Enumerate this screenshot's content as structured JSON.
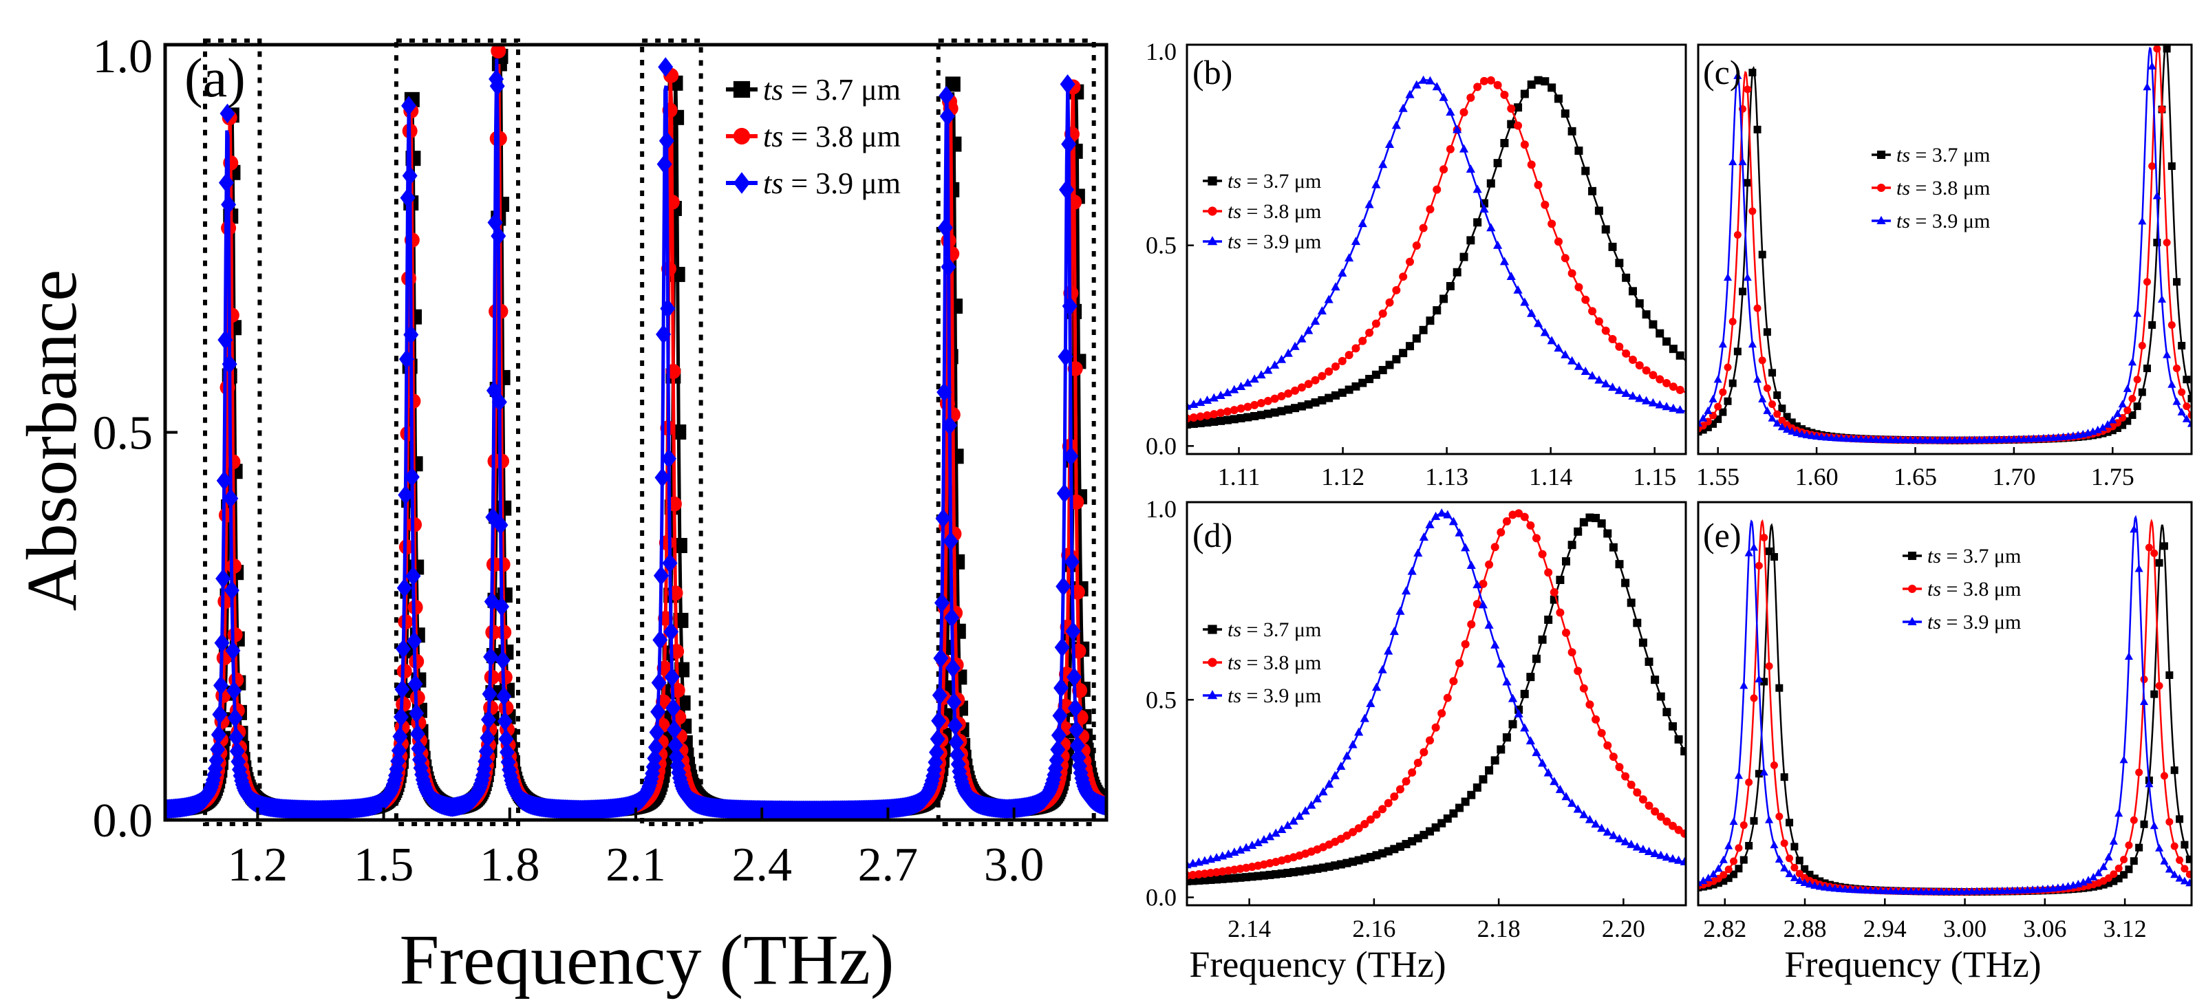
{
  "colors": {
    "s0": "#000000",
    "s1": "#ff0000",
    "s2": "#0000ff"
  },
  "chart_data": [
    {
      "panel": "(a)",
      "type": "line",
      "xlabel": "Frequency (THz)",
      "ylabel": "Absorbance",
      "xlim": [
        0.98,
        3.22
      ],
      "ylim": [
        0.0,
        1.0
      ],
      "xticks": [
        "1.2",
        "1.5",
        "1.8",
        "2.1",
        "2.4",
        "2.7",
        "3.0"
      ],
      "yticks": [
        "0.0",
        "0.5",
        "1.0"
      ],
      "legend_position": "top-right",
      "highlight_boxes_x": [
        [
          1.075,
          1.205
        ],
        [
          1.53,
          1.82
        ],
        [
          2.115,
          2.255
        ],
        [
          2.82,
          3.19
        ]
      ],
      "series": [
        {
          "name": "ts = 3.7 μm",
          "symbol": "ts",
          "value": " = 3.7 μm",
          "marker": "square",
          "peaks": [
            [
              1.139,
              0.9
            ],
            [
              1.568,
              0.92
            ],
            [
              1.777,
              1.0
            ],
            [
              2.195,
              0.95
            ],
            [
              2.855,
              0.94
            ],
            [
              3.148,
              0.93
            ]
          ]
        },
        {
          "name": "ts = 3.8 μm",
          "symbol": "ts",
          "value": " = 3.8 μm",
          "marker": "circle",
          "peaks": [
            [
              1.134,
              0.9
            ],
            [
              1.564,
              0.92
            ],
            [
              1.773,
              0.98
            ],
            [
              2.183,
              0.96
            ],
            [
              2.848,
              0.94
            ],
            [
              3.14,
              0.94
            ]
          ]
        },
        {
          "name": "ts = 3.9 μm",
          "symbol": "ts",
          "value": " = 3.9 μm",
          "marker": "diamond",
          "peaks": [
            [
              1.128,
              0.9
            ],
            [
              1.56,
              0.91
            ],
            [
              1.769,
              0.97
            ],
            [
              2.171,
              0.96
            ],
            [
              2.84,
              0.94
            ],
            [
              3.128,
              0.94
            ]
          ]
        }
      ]
    },
    {
      "panel": "(b)",
      "type": "line",
      "xlabel": "",
      "ylabel": "",
      "xlim": [
        1.105,
        1.153
      ],
      "ylim": [
        -0.02,
        1.0
      ],
      "xticks": [
        "1.11",
        "1.12",
        "1.13",
        "1.14",
        "1.15"
      ],
      "yticks": [
        "0.0",
        "0.5",
        "1.0"
      ],
      "legend_position": "left",
      "series": [
        {
          "name": "ts = 3.7 μm",
          "symbol": "ts",
          "value": " = 3.7 μm",
          "marker": "square",
          "peaks": [
            [
              1.139,
              0.9
            ]
          ]
        },
        {
          "name": "ts = 3.8 μm",
          "symbol": "ts",
          "value": " = 3.8 μm",
          "marker": "circle",
          "peaks": [
            [
              1.134,
              0.9
            ]
          ]
        },
        {
          "name": "ts = 3.9 μm",
          "symbol": "ts",
          "value": " = 3.9 μm",
          "marker": "triangle",
          "peaks": [
            [
              1.128,
              0.9
            ]
          ]
        }
      ]
    },
    {
      "panel": "(c)",
      "type": "line",
      "xlabel": "",
      "ylabel": "",
      "xlim": [
        1.54,
        1.79
      ],
      "ylim": [
        -0.02,
        1.0
      ],
      "xticks": [
        "1.55",
        "1.60",
        "1.65",
        "1.70",
        "1.75"
      ],
      "yticks": [],
      "legend_position": "top-center",
      "series": [
        {
          "name": "ts = 3.7 μm",
          "symbol": "ts",
          "value": " = 3.7 μm",
          "marker": "square",
          "peaks": [
            [
              1.568,
              0.93
            ],
            [
              1.777,
              0.99
            ]
          ]
        },
        {
          "name": "ts = 3.8 μm",
          "symbol": "ts",
          "value": " = 3.8 μm",
          "marker": "circle",
          "peaks": [
            [
              1.564,
              0.92
            ],
            [
              1.773,
              0.99
            ]
          ]
        },
        {
          "name": "ts = 3.9 μm",
          "symbol": "ts",
          "value": " = 3.9 μm",
          "marker": "triangle",
          "peaks": [
            [
              1.56,
              0.91
            ],
            [
              1.769,
              0.98
            ]
          ]
        }
      ]
    },
    {
      "panel": "(d)",
      "type": "line",
      "xlabel": "Frequency (THz)",
      "ylabel": "",
      "xlim": [
        2.13,
        2.21
      ],
      "ylim": [
        -0.02,
        1.0
      ],
      "xticks": [
        "2.14",
        "2.16",
        "2.18",
        "2.20"
      ],
      "yticks": [
        "0.0",
        "0.5",
        "1.0"
      ],
      "legend_position": "left",
      "series": [
        {
          "name": "ts = 3.7 μm",
          "symbol": "ts",
          "value": " = 3.7 μm",
          "marker": "square",
          "peaks": [
            [
              2.195,
              0.95
            ]
          ]
        },
        {
          "name": "ts = 3.8 μm",
          "symbol": "ts",
          "value": " = 3.8 μm",
          "marker": "circle",
          "peaks": [
            [
              2.183,
              0.96
            ]
          ]
        },
        {
          "name": "ts = 3.9 μm",
          "symbol": "ts",
          "value": " = 3.9 μm",
          "marker": "triangle",
          "peaks": [
            [
              2.171,
              0.96
            ]
          ]
        }
      ]
    },
    {
      "panel": "(e)",
      "type": "line",
      "xlabel": "Frequency (THz)",
      "ylabel": "",
      "xlim": [
        2.8,
        3.17
      ],
      "ylim": [
        -0.02,
        1.0
      ],
      "xticks": [
        "2.82",
        "2.88",
        "2.94",
        "3.00",
        "3.06",
        "3.12"
      ],
      "yticks": [],
      "legend_position": "top-center",
      "series": [
        {
          "name": "ts = 3.7 μm",
          "symbol": "ts",
          "value": " = 3.7 μm",
          "marker": "square",
          "peaks": [
            [
              2.855,
              0.93
            ],
            [
              3.148,
              0.93
            ]
          ]
        },
        {
          "name": "ts = 3.8 μm",
          "symbol": "ts",
          "value": " = 3.8 μm",
          "marker": "circle",
          "peaks": [
            [
              2.848,
              0.94
            ],
            [
              3.14,
              0.94
            ]
          ]
        },
        {
          "name": "ts = 3.9 μm",
          "symbol": "ts",
          "value": " = 3.9 μm",
          "marker": "triangle",
          "peaks": [
            [
              2.84,
              0.94
            ],
            [
              3.128,
              0.95
            ]
          ]
        }
      ]
    }
  ]
}
